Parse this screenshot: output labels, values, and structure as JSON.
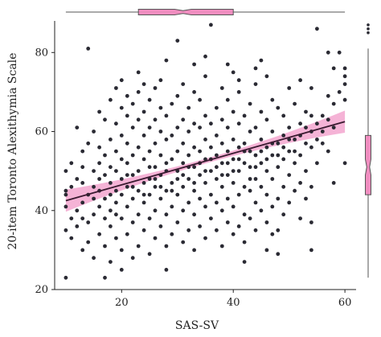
{
  "chart_data": {
    "type": "scatter",
    "xlabel": "SAS-SV",
    "ylabel": "20-item Toronto Alexithymia Scale",
    "xlim": [
      8,
      62
    ],
    "ylim": [
      20,
      88
    ],
    "xticks": [
      "20",
      "40",
      "60"
    ],
    "yticks": [
      "20",
      "40",
      "60",
      "80"
    ],
    "grid": false,
    "point_color": "#2a2a33",
    "fit_line_color": "#3a1a30",
    "band_color": "#f3a6cf",
    "box_fill": "#f08ec0",
    "box_stroke": "#555555",
    "fit": {
      "x0": 10,
      "y0": 42.5,
      "x1": 60,
      "y1": 62.5
    },
    "marginal_x_box": {
      "whisker_low": 10,
      "q1": 23,
      "median": 31,
      "q3": 40,
      "whisker_high": 60,
      "outliers": []
    },
    "marginal_y_box": {
      "whisker_low": 23,
      "q1": 44,
      "median": 51,
      "q3": 59,
      "whisker_high": 81,
      "outliers": [
        85,
        87,
        86
      ]
    },
    "sampled_points_note_excluded": "",
    "points": [
      [
        10,
        23
      ],
      [
        10,
        35
      ],
      [
        10,
        41
      ],
      [
        10,
        45
      ],
      [
        10,
        50
      ],
      [
        11,
        33
      ],
      [
        11,
        38
      ],
      [
        11,
        52
      ],
      [
        12,
        36
      ],
      [
        12,
        40
      ],
      [
        12,
        48
      ],
      [
        12,
        61
      ],
      [
        13,
        30
      ],
      [
        13,
        42
      ],
      [
        13,
        47
      ],
      [
        13,
        51
      ],
      [
        13,
        55
      ],
      [
        14,
        32
      ],
      [
        14,
        37
      ],
      [
        14,
        44
      ],
      [
        14,
        57
      ],
      [
        14,
        81
      ],
      [
        15,
        28
      ],
      [
        15,
        39
      ],
      [
        15,
        46
      ],
      [
        15,
        50
      ],
      [
        15,
        60
      ],
      [
        16,
        34
      ],
      [
        16,
        41
      ],
      [
        16,
        45
      ],
      [
        16,
        52
      ],
      [
        16,
        56
      ],
      [
        16,
        65
      ],
      [
        17,
        23
      ],
      [
        17,
        31
      ],
      [
        17,
        38
      ],
      [
        17,
        43
      ],
      [
        17,
        49
      ],
      [
        17,
        54
      ],
      [
        17,
        63
      ],
      [
        18,
        27
      ],
      [
        18,
        36
      ],
      [
        18,
        40
      ],
      [
        18,
        47
      ],
      [
        18,
        51
      ],
      [
        18,
        58
      ],
      [
        18,
        68
      ],
      [
        19,
        33
      ],
      [
        19,
        42
      ],
      [
        19,
        45
      ],
      [
        19,
        50
      ],
      [
        19,
        55
      ],
      [
        19,
        62
      ],
      [
        19,
        71
      ],
      [
        20,
        25
      ],
      [
        20,
        30
      ],
      [
        20,
        38
      ],
      [
        20,
        44
      ],
      [
        20,
        48
      ],
      [
        20,
        53
      ],
      [
        20,
        59
      ],
      [
        20,
        66
      ],
      [
        21,
        34
      ],
      [
        21,
        41
      ],
      [
        21,
        46
      ],
      [
        21,
        52
      ],
      [
        21,
        57
      ],
      [
        21,
        64
      ],
      [
        21,
        69
      ],
      [
        22,
        28
      ],
      [
        22,
        37
      ],
      [
        22,
        43
      ],
      [
        22,
        49
      ],
      [
        22,
        54
      ],
      [
        22,
        61
      ],
      [
        22,
        67
      ],
      [
        23,
        31
      ],
      [
        23,
        39
      ],
      [
        23,
        45
      ],
      [
        23,
        50
      ],
      [
        23,
        56
      ],
      [
        23,
        63
      ],
      [
        23,
        70
      ],
      [
        24,
        35
      ],
      [
        24,
        42
      ],
      [
        24,
        47
      ],
      [
        24,
        53
      ],
      [
        24,
        59
      ],
      [
        24,
        65
      ],
      [
        24,
        72
      ],
      [
        25,
        29
      ],
      [
        25,
        38
      ],
      [
        25,
        44
      ],
      [
        25,
        48
      ],
      [
        25,
        55
      ],
      [
        25,
        61
      ],
      [
        25,
        68
      ],
      [
        26,
        33
      ],
      [
        26,
        40
      ],
      [
        26,
        46
      ],
      [
        26,
        51
      ],
      [
        26,
        57
      ],
      [
        26,
        63
      ],
      [
        26,
        71
      ],
      [
        27,
        36
      ],
      [
        27,
        43
      ],
      [
        27,
        49
      ],
      [
        27,
        54
      ],
      [
        27,
        60
      ],
      [
        27,
        66
      ],
      [
        28,
        25
      ],
      [
        28,
        31
      ],
      [
        28,
        39
      ],
      [
        28,
        45
      ],
      [
        28,
        52
      ],
      [
        28,
        58
      ],
      [
        28,
        64
      ],
      [
        28,
        78
      ],
      [
        29,
        34
      ],
      [
        29,
        41
      ],
      [
        29,
        47
      ],
      [
        29,
        53
      ],
      [
        29,
        59
      ],
      [
        29,
        67
      ],
      [
        30,
        37
      ],
      [
        30,
        44
      ],
      [
        30,
        50
      ],
      [
        30,
        55
      ],
      [
        30,
        61
      ],
      [
        30,
        69
      ],
      [
        30,
        83
      ],
      [
        31,
        32
      ],
      [
        31,
        40
      ],
      [
        31,
        46
      ],
      [
        31,
        52
      ],
      [
        31,
        57
      ],
      [
        31,
        63
      ],
      [
        31,
        72
      ],
      [
        32,
        35
      ],
      [
        32,
        42
      ],
      [
        32,
        48
      ],
      [
        32,
        54
      ],
      [
        32,
        60
      ],
      [
        32,
        66
      ],
      [
        33,
        30
      ],
      [
        33,
        39
      ],
      [
        33,
        45
      ],
      [
        33,
        51
      ],
      [
        33,
        56
      ],
      [
        33,
        62
      ],
      [
        33,
        70
      ],
      [
        34,
        36
      ],
      [
        34,
        43
      ],
      [
        34,
        49
      ],
      [
        34,
        55
      ],
      [
        34,
        61
      ],
      [
        34,
        68
      ],
      [
        35,
        33
      ],
      [
        35,
        41
      ],
      [
        35,
        47
      ],
      [
        35,
        53
      ],
      [
        35,
        58
      ],
      [
        35,
        64
      ],
      [
        35,
        74
      ],
      [
        36,
        38
      ],
      [
        36,
        44
      ],
      [
        36,
        50
      ],
      [
        36,
        56
      ],
      [
        36,
        62
      ],
      [
        36,
        87
      ],
      [
        37,
        35
      ],
      [
        37,
        42
      ],
      [
        37,
        48
      ],
      [
        37,
        54
      ],
      [
        37,
        59
      ],
      [
        37,
        66
      ],
      [
        38,
        31
      ],
      [
        38,
        40
      ],
      [
        38,
        46
      ],
      [
        38,
        52
      ],
      [
        38,
        57
      ],
      [
        38,
        63
      ],
      [
        38,
        71
      ],
      [
        39,
        37
      ],
      [
        39,
        43
      ],
      [
        39,
        49
      ],
      [
        39,
        55
      ],
      [
        39,
        61
      ],
      [
        39,
        68
      ],
      [
        40,
        34
      ],
      [
        40,
        41
      ],
      [
        40,
        47
      ],
      [
        40,
        53
      ],
      [
        40,
        58
      ],
      [
        40,
        65
      ],
      [
        40,
        75
      ],
      [
        41,
        36
      ],
      [
        41,
        44
      ],
      [
        41,
        50
      ],
      [
        41,
        56
      ],
      [
        41,
        62
      ],
      [
        41,
        70
      ],
      [
        42,
        32
      ],
      [
        42,
        39
      ],
      [
        42,
        46
      ],
      [
        42,
        52
      ],
      [
        42,
        57
      ],
      [
        42,
        64
      ],
      [
        43,
        38
      ],
      [
        43,
        45
      ],
      [
        43,
        51
      ],
      [
        43,
        55
      ],
      [
        43,
        60
      ],
      [
        43,
        67
      ],
      [
        44,
        35
      ],
      [
        44,
        42
      ],
      [
        44,
        48
      ],
      [
        44,
        54
      ],
      [
        44,
        61
      ],
      [
        44,
        72
      ],
      [
        45,
        40
      ],
      [
        45,
        46
      ],
      [
        45,
        52
      ],
      [
        45,
        58
      ],
      [
        45,
        65
      ],
      [
        46,
        30
      ],
      [
        46,
        37
      ],
      [
        46,
        44
      ],
      [
        46,
        50
      ],
      [
        46,
        56
      ],
      [
        46,
        63
      ],
      [
        46,
        74
      ],
      [
        47,
        41
      ],
      [
        47,
        48
      ],
      [
        47,
        54
      ],
      [
        47,
        60
      ],
      [
        47,
        68
      ],
      [
        48,
        29
      ],
      [
        48,
        35
      ],
      [
        48,
        43
      ],
      [
        48,
        51
      ],
      [
        48,
        57
      ],
      [
        48,
        66
      ],
      [
        49,
        39
      ],
      [
        49,
        46
      ],
      [
        49,
        53
      ],
      [
        49,
        59
      ],
      [
        49,
        64
      ],
      [
        50,
        42
      ],
      [
        50,
        49
      ],
      [
        50,
        55
      ],
      [
        50,
        61
      ],
      [
        50,
        71
      ],
      [
        51,
        45
      ],
      [
        51,
        52
      ],
      [
        51,
        58
      ],
      [
        51,
        67
      ],
      [
        52,
        38
      ],
      [
        52,
        47
      ],
      [
        52,
        54
      ],
      [
        52,
        62
      ],
      [
        52,
        73
      ],
      [
        53,
        43
      ],
      [
        53,
        50
      ],
      [
        53,
        57
      ],
      [
        53,
        65
      ],
      [
        54,
        37
      ],
      [
        54,
        46
      ],
      [
        54,
        56
      ],
      [
        54,
        64
      ],
      [
        54,
        71
      ],
      [
        55,
        52
      ],
      [
        55,
        58
      ],
      [
        55,
        86
      ],
      [
        56,
        60
      ],
      [
        56,
        64
      ],
      [
        57,
        55
      ],
      [
        57,
        63
      ],
      [
        57,
        69
      ],
      [
        57,
        80
      ],
      [
        58,
        47
      ],
      [
        58,
        61
      ],
      [
        58,
        67
      ],
      [
        58,
        76
      ],
      [
        59,
        70
      ],
      [
        59,
        80
      ],
      [
        60,
        52
      ],
      [
        60,
        68
      ],
      [
        60,
        72
      ],
      [
        60,
        74
      ],
      [
        60,
        76
      ],
      [
        10,
        44
      ],
      [
        11,
        46
      ],
      [
        13,
        38
      ],
      [
        15,
        43
      ],
      [
        16,
        48
      ],
      [
        18,
        44
      ],
      [
        19,
        39
      ],
      [
        21,
        49
      ],
      [
        22,
        46
      ],
      [
        24,
        44
      ],
      [
        25,
        51
      ],
      [
        26,
        48
      ],
      [
        27,
        46
      ],
      [
        28,
        50
      ],
      [
        29,
        45
      ],
      [
        30,
        48
      ],
      [
        31,
        49
      ],
      [
        32,
        51
      ],
      [
        33,
        47
      ],
      [
        34,
        52
      ],
      [
        35,
        50
      ],
      [
        36,
        53
      ],
      [
        37,
        51
      ],
      [
        38,
        49
      ],
      [
        39,
        52
      ],
      [
        40,
        50
      ],
      [
        41,
        53
      ],
      [
        42,
        55
      ],
      [
        43,
        48
      ],
      [
        44,
        51
      ],
      [
        45,
        55
      ],
      [
        46,
        53
      ],
      [
        47,
        57
      ],
      [
        48,
        54
      ],
      [
        49,
        56
      ],
      [
        50,
        58
      ],
      [
        51,
        55
      ],
      [
        52,
        59
      ],
      [
        53,
        61
      ],
      [
        54,
        60
      ],
      [
        55,
        62
      ],
      [
        56,
        57
      ],
      [
        20,
        73
      ],
      [
        23,
        75
      ],
      [
        27,
        73
      ],
      [
        33,
        77
      ],
      [
        35,
        79
      ],
      [
        41,
        73
      ],
      [
        44,
        76
      ],
      [
        45,
        78
      ],
      [
        39,
        77
      ],
      [
        54,
        30
      ],
      [
        47,
        34
      ],
      [
        42,
        27
      ]
    ]
  }
}
